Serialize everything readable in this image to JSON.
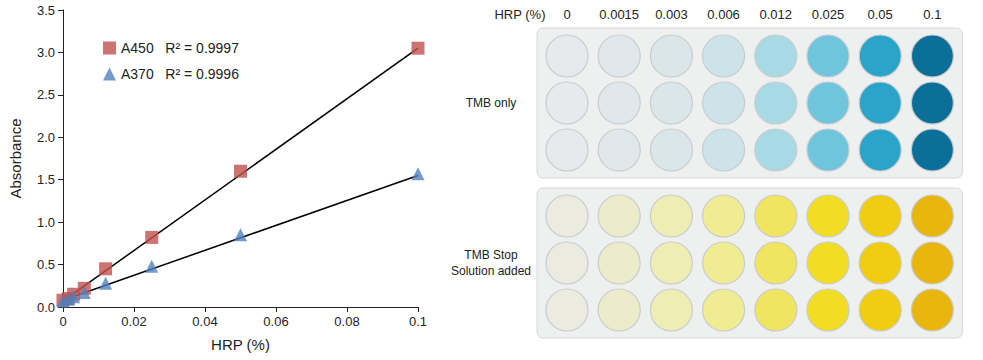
{
  "chart_data": {
    "type": "scatter",
    "x_label": "HRP (%)",
    "y_label": "Absorbance",
    "x": [
      0,
      0.0015,
      0.003,
      0.006,
      0.012,
      0.025,
      0.05,
      0.1
    ],
    "series": [
      {
        "name": "A450   R² = 0.9997",
        "color": "#c0504d",
        "marker": "square",
        "values": [
          0.08,
          0.1,
          0.15,
          0.22,
          0.45,
          0.82,
          1.6,
          3.05
        ],
        "fit_x": [
          0,
          0.1
        ],
        "fit_values": [
          0.07,
          3.05
        ],
        "fit_color": "#000000"
      },
      {
        "name": "A370   R² = 0.9996",
        "color": "#4f81bd",
        "marker": "triangle",
        "values": [
          0.07,
          0.09,
          0.12,
          0.17,
          0.28,
          0.48,
          0.85,
          1.57
        ],
        "fit_x": [
          0,
          0.1
        ],
        "fit_values": [
          0.08,
          1.55
        ],
        "fit_color": "#000000"
      }
    ],
    "xlim": [
      0,
      0.1
    ],
    "xticks": [
      0,
      0.02,
      0.04,
      0.06,
      0.08,
      0.1
    ],
    "ylim": [
      0,
      3.5
    ],
    "yticks": [
      {
        "value": 0,
        "label": "0.0"
      },
      0.5,
      {
        "value": 1,
        "label": "1.0"
      },
      1.5,
      {
        "value": 2,
        "label": "2.0"
      },
      2.5,
      {
        "value": 3,
        "label": "3.0"
      },
      3.5
    ],
    "grid": false,
    "legend": "upper left"
  },
  "plate": {
    "header": "HRP (%)",
    "columns": [
      "0",
      "0.0015",
      "0.003",
      "0.006",
      "0.012",
      "0.025",
      "0.05",
      "0.1"
    ],
    "panels": [
      {
        "label": [
          "TMB only"
        ],
        "colors": [
          "#e6eaec",
          "#e1e8eb",
          "#dbe6ea",
          "#cde3ea",
          "#a8dae6",
          "#6ec5dc",
          "#2aa4c8",
          "#0b6f9a"
        ]
      },
      {
        "label": [
          "TMB Stop",
          "Solution added"
        ],
        "colors": [
          "#ebebdf",
          "#ececcb",
          "#eeedb3",
          "#efec92",
          "#f0e460",
          "#f2dc24",
          "#f0cc12",
          "#e9b60f"
        ]
      }
    ]
  }
}
